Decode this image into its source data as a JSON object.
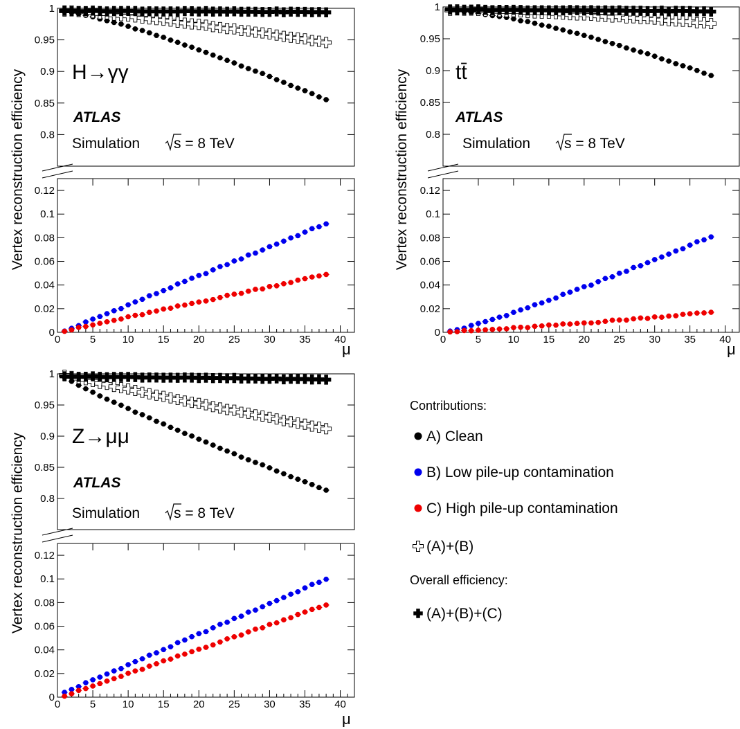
{
  "figure": {
    "atlas_label": "ATLAS",
    "simulation_label": "Simulation",
    "energy_label": "s = 8 TeV",
    "ylabel": "Vertex reconstruction efficiency",
    "xlabel": "μ",
    "x_ticks": [
      0,
      5,
      10,
      15,
      20,
      25,
      30,
      35,
      40
    ],
    "upper_y_ticks": [
      "1",
      "0.95",
      "0.9",
      "0.85",
      "0.8"
    ],
    "lower_y_ticks": [
      "0",
      "0.02",
      "0.04",
      "0.06",
      "0.08",
      "0.1",
      "0.12"
    ]
  },
  "legend": {
    "contributions_title": "Contributions:",
    "overall_title": "Overall efficiency:",
    "items": [
      {
        "key": "A",
        "label": "A) Clean",
        "marker": "filled-circle",
        "color": "#000000"
      },
      {
        "key": "B",
        "label": "B) Low pile-up contamination",
        "marker": "filled-circle",
        "color": "#0000ee"
      },
      {
        "key": "C",
        "label": "C) High pile-up contamination",
        "marker": "filled-circle",
        "color": "#ee0000"
      },
      {
        "key": "AB",
        "label": "(A)+(B)",
        "marker": "open-cross",
        "color": "#000000"
      },
      {
        "key": "ABC",
        "label": "(A)+(B)+(C)",
        "marker": "filled-cross",
        "color": "#000000"
      }
    ]
  },
  "chart_data": [
    {
      "type": "scatter",
      "process": "H→γγ",
      "xlabel": "μ",
      "ylabel": "Vertex reconstruction efficiency",
      "xlim": [
        0,
        42
      ],
      "ylim_upper": [
        0.75,
        1.0
      ],
      "ylim_lower": [
        0,
        0.13
      ],
      "x_first": 1,
      "x_last": 38,
      "series": [
        {
          "name": "A) Clean",
          "start": 0.995,
          "end": 0.855,
          "shape": 1.25
        },
        {
          "name": "B) Low pile-up contamination",
          "start": 0.001,
          "end": 0.092,
          "shape": 1.0
        },
        {
          "name": "C) High pile-up contamination",
          "start": 0.001,
          "end": 0.049,
          "shape": 1.0
        },
        {
          "name": "(A)+(B)",
          "start": 0.996,
          "end": 0.946,
          "shape": 1.25
        },
        {
          "name": "(A)+(B)+(C)",
          "start": 0.996,
          "end": 0.994,
          "shape": 1.0
        }
      ]
    },
    {
      "type": "scatter",
      "process": "tt̄",
      "xlabel": "μ",
      "ylabel": "Vertex reconstruction efficiency",
      "xlim": [
        0,
        42
      ],
      "ylim_upper": [
        0.75,
        1.0
      ],
      "ylim_lower": [
        0,
        0.13
      ],
      "x_first": 1,
      "x_last": 38,
      "series": [
        {
          "name": "A) Clean",
          "start": 0.994,
          "end": 0.892,
          "shape": 1.45
        },
        {
          "name": "B) Low pile-up contamination",
          "start": 0.001,
          "end": 0.081,
          "shape": 1.15
        },
        {
          "name": "C) High pile-up contamination",
          "start": 0.0005,
          "end": 0.017,
          "shape": 1.2
        },
        {
          "name": "(A)+(B)",
          "start": 0.995,
          "end": 0.974,
          "shape": 1.5
        },
        {
          "name": "(A)+(B)+(C)",
          "start": 0.996,
          "end": 0.993,
          "shape": 1.0
        }
      ]
    },
    {
      "type": "scatter",
      "process": "Z→μμ",
      "xlabel": "μ",
      "ylabel": "Vertex reconstruction efficiency",
      "xlim": [
        0,
        42
      ],
      "ylim_upper": [
        0.75,
        1.0
      ],
      "ylim_lower": [
        0,
        0.13
      ],
      "x_first": 1,
      "x_last": 38,
      "series": [
        {
          "name": "A) Clean",
          "start": 0.995,
          "end": 0.813,
          "shape": 0.9
        },
        {
          "name": "B) Low pile-up contamination",
          "start": 0.004,
          "end": 0.1,
          "shape": 1.0
        },
        {
          "name": "C) High pile-up contamination",
          "start": 0.001,
          "end": 0.078,
          "shape": 1.0
        },
        {
          "name": "(A)+(B)",
          "start": 0.998,
          "end": 0.912,
          "shape": 0.95
        },
        {
          "name": "(A)+(B)+(C)",
          "start": 0.996,
          "end": 0.991,
          "shape": 1.0
        }
      ]
    }
  ]
}
